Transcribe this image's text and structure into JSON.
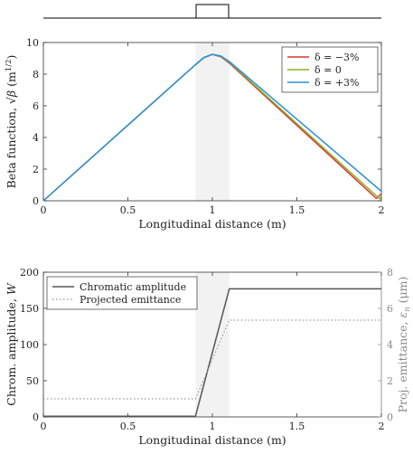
{
  "chart_data": [
    {
      "type": "line",
      "xlabel": "Longitudinal distance (m)",
      "ylabel": "Beta function, √β (m^1/2)",
      "ylabel_parts": {
        "main": "Beta function, ",
        "sqrt": "√β",
        "unit": " (m",
        "exp": "1/2",
        "close": ")"
      },
      "xlim": [
        0,
        2
      ],
      "ylim": [
        0,
        10
      ],
      "xticks": [
        "0",
        "0.5",
        "1",
        "1.5",
        "2"
      ],
      "yticks": [
        "0",
        "2",
        "4",
        "6",
        "8",
        "10"
      ],
      "shaded_region": [
        0.9,
        1.1
      ],
      "legend_position": "top-right",
      "series": [
        {
          "name": "δ = −3%",
          "color": "#d9342b",
          "points": [
            [
              0,
              0
            ],
            [
              0.9,
              8.6
            ],
            [
              0.95,
              9.05
            ],
            [
              1.0,
              9.25
            ],
            [
              1.05,
              9.1
            ],
            [
              1.1,
              8.7
            ],
            [
              1.97,
              0.15
            ],
            [
              2.0,
              0.45
            ]
          ]
        },
        {
          "name": "δ = 0",
          "color": "#8ab225",
          "points": [
            [
              0,
              0
            ],
            [
              0.9,
              8.6
            ],
            [
              0.95,
              9.05
            ],
            [
              1.0,
              9.25
            ],
            [
              1.05,
              9.12
            ],
            [
              1.1,
              8.75
            ],
            [
              1.99,
              0.12
            ],
            [
              2.0,
              0.3
            ]
          ]
        },
        {
          "name": "δ = +3%",
          "color": "#2b8fd9",
          "points": [
            [
              0,
              0
            ],
            [
              0.9,
              8.6
            ],
            [
              0.95,
              9.05
            ],
            [
              1.0,
              9.25
            ],
            [
              1.05,
              9.15
            ],
            [
              1.1,
              8.8
            ],
            [
              2.0,
              0.6
            ]
          ]
        }
      ]
    },
    {
      "type": "line",
      "xlabel": "Longitudinal distance (m)",
      "ylabel": "Chrom. amplitude, W",
      "ylabel_parts": {
        "main": "Chrom. amplitude, ",
        "var": "W"
      },
      "ylabel_right": "Proj. emittance, εn (μm)",
      "ylabel_right_parts": {
        "main": "Proj. emittance, ",
        "var": "ε",
        "sub": "n",
        "unit": " (μm)"
      },
      "xlim": [
        0,
        2
      ],
      "ylim": [
        0,
        200
      ],
      "ylim_right": [
        0,
        8
      ],
      "xticks": [
        "0",
        "0.5",
        "1",
        "1.5",
        "2"
      ],
      "yticks": [
        "0",
        "50",
        "100",
        "150",
        "200"
      ],
      "yticks_right": [
        "0",
        "2",
        "4",
        "6",
        "8"
      ],
      "shaded_region": [
        0.9,
        1.1
      ],
      "legend_position": "top-left",
      "series": [
        {
          "name": "Chromatic amplitude",
          "color": "#555555",
          "style": "solid",
          "axis": "left",
          "points": [
            [
              0,
              1
            ],
            [
              0.9,
              1
            ],
            [
              1.1,
              177
            ],
            [
              2.0,
              177
            ]
          ]
        },
        {
          "name": "Projected emittance",
          "color": "#999999",
          "style": "dotted",
          "axis": "right",
          "points": [
            [
              0,
              1.0
            ],
            [
              0.9,
              1.0
            ],
            [
              1.1,
              5.35
            ],
            [
              2.0,
              5.35
            ]
          ]
        }
      ]
    }
  ]
}
